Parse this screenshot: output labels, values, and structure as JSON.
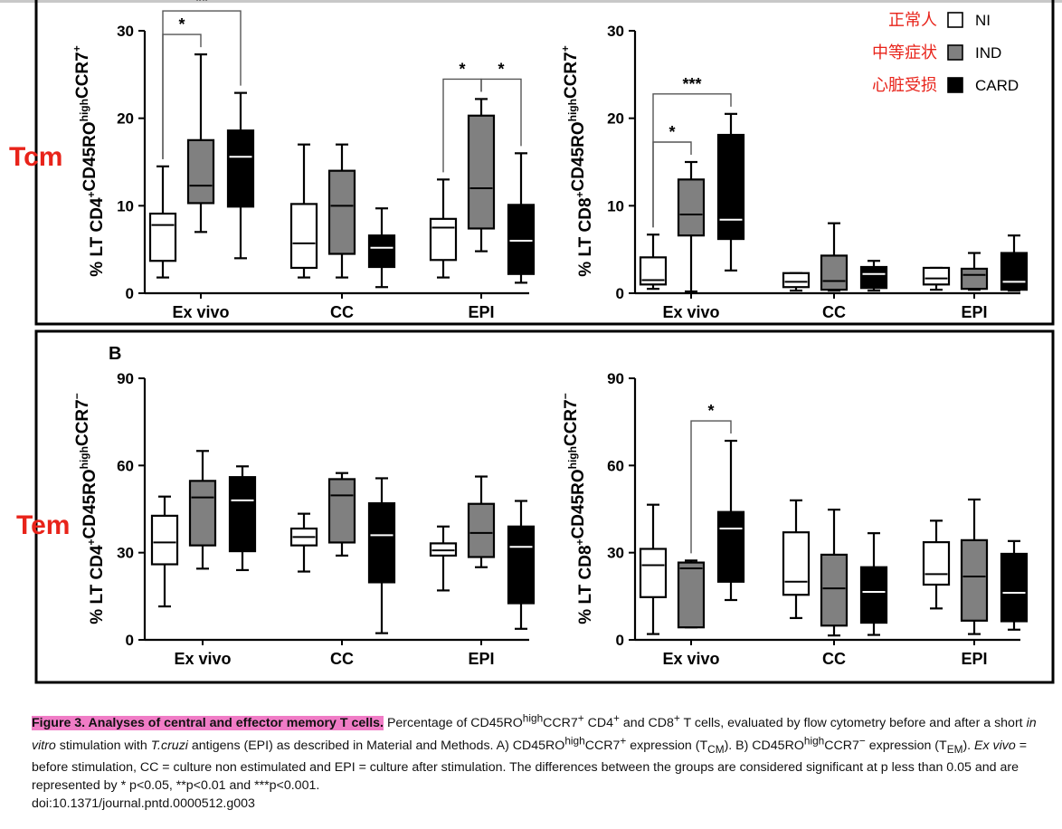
{
  "chart_data": [
    {
      "type": "box",
      "row": "Tcm",
      "side": "CD4",
      "ylabel": {
        "prefix": "% LT CD4",
        "sup1": "+",
        "mid": "CD45RO",
        "sup2": "high",
        "suffix": "CCR7",
        "sup3": "+"
      },
      "ylim": [
        0,
        30
      ],
      "yticks": [
        "0",
        "10",
        "20",
        "30"
      ],
      "categories": [
        "Ex vivo",
        "CC",
        "EPI"
      ],
      "groups": {
        "NI": [
          {
            "min": 1.8,
            "q1": 3.7,
            "median": 7.8,
            "q3": 9.1,
            "max": 14.5
          },
          {
            "min": 1.8,
            "q1": 2.9,
            "median": 5.7,
            "q3": 10.2,
            "max": 17.0
          },
          {
            "min": 1.8,
            "q1": 3.8,
            "median": 7.5,
            "q3": 8.5,
            "max": 13.0
          }
        ],
        "IND": [
          {
            "min": 7.0,
            "q1": 10.3,
            "median": 12.3,
            "q3": 17.5,
            "max": 27.3
          },
          {
            "min": 1.8,
            "q1": 4.5,
            "median": 10.0,
            "q3": 14.0,
            "max": 17.0
          },
          {
            "min": 4.8,
            "q1": 7.4,
            "median": 12.0,
            "q3": 20.3,
            "max": 22.2
          }
        ],
        "CARD": [
          {
            "min": 4.0,
            "q1": 9.9,
            "median": 15.6,
            "q3": 18.6,
            "max": 22.9
          },
          {
            "min": 0.7,
            "q1": 3.0,
            "median": 5.2,
            "q3": 6.6,
            "max": 9.7
          },
          {
            "min": 1.2,
            "q1": 2.2,
            "median": 6.0,
            "q3": 10.1,
            "max": 16.0
          }
        ]
      },
      "significance": [
        {
          "cat": 0,
          "from": "NI",
          "to": "IND",
          "label": "*"
        },
        {
          "cat": 0,
          "from": "NI",
          "to": "CARD",
          "label": "**"
        },
        {
          "cat": 2,
          "from": "NI",
          "to": "IND",
          "label": "*"
        },
        {
          "cat": 2,
          "from": "IND",
          "to": "CARD",
          "label": "*"
        }
      ]
    },
    {
      "type": "box",
      "row": "Tcm",
      "side": "CD8",
      "ylabel": {
        "prefix": "% LT CD8",
        "sup1": "+",
        "mid": "CD45RO",
        "sup2": "high",
        "suffix": "CCR7",
        "sup3": "+"
      },
      "ylim": [
        0,
        30
      ],
      "yticks": [
        "0",
        "10",
        "20",
        "30"
      ],
      "categories": [
        "Ex vivo",
        "CC",
        "EPI"
      ],
      "groups": {
        "NI": [
          {
            "min": 0.5,
            "q1": 1.0,
            "median": 1.5,
            "q3": 4.1,
            "max": 6.7
          },
          {
            "min": 0.3,
            "q1": 0.7,
            "median": 1.3,
            "q3": 2.3,
            "max": 2.3
          },
          {
            "min": 0.4,
            "q1": 1.0,
            "median": 1.7,
            "q3": 2.9,
            "max": 2.9
          }
        ],
        "IND": [
          {
            "min": 0.2,
            "q1": 6.6,
            "median": 9.0,
            "q3": 13.0,
            "max": 15.0
          },
          {
            "min": 0.3,
            "q1": 0.4,
            "median": 1.4,
            "q3": 4.3,
            "max": 8.0
          },
          {
            "min": 0.4,
            "q1": 0.5,
            "median": 2.1,
            "q3": 2.8,
            "max": 4.6
          }
        ],
        "CARD": [
          {
            "min": 2.6,
            "q1": 6.2,
            "median": 8.4,
            "q3": 18.1,
            "max": 20.5
          },
          {
            "min": 0.3,
            "q1": 0.6,
            "median": 2.2,
            "q3": 3.0,
            "max": 3.7
          },
          {
            "min": 0.3,
            "q1": 0.4,
            "median": 1.3,
            "q3": 4.6,
            "max": 6.6
          }
        ]
      },
      "significance": [
        {
          "cat": 0,
          "from": "NI",
          "to": "IND",
          "label": "*"
        },
        {
          "cat": 0,
          "from": "NI",
          "to": "CARD",
          "label": "***"
        }
      ]
    },
    {
      "type": "box",
      "row": "Tem",
      "side": "CD4",
      "ylabel": {
        "prefix": "% LT CD4",
        "sup1": "+",
        "mid": "CD45RO",
        "sup2": "high",
        "suffix": "CCR7",
        "sup3": "−"
      },
      "ylim": [
        0,
        90
      ],
      "yticks": [
        "0",
        "30",
        "60",
        "90"
      ],
      "categories": [
        "Ex vivo",
        "CC",
        "EPI"
      ],
      "groups": {
        "NI": [
          {
            "min": 11.5,
            "q1": 26.0,
            "median": 33.5,
            "q3": 42.7,
            "max": 49.3
          },
          {
            "min": 23.5,
            "q1": 32.5,
            "median": 35.4,
            "q3": 38.3,
            "max": 43.4
          },
          {
            "min": 17.0,
            "q1": 29.0,
            "median": 30.8,
            "q3": 33.2,
            "max": 39.0
          }
        ],
        "IND": [
          {
            "min": 24.5,
            "q1": 32.5,
            "median": 49.0,
            "q3": 54.7,
            "max": 65.0
          },
          {
            "min": 29.0,
            "q1": 33.5,
            "median": 49.7,
            "q3": 55.3,
            "max": 57.4
          },
          {
            "min": 25.0,
            "q1": 28.5,
            "median": 36.8,
            "q3": 46.8,
            "max": 56.2
          }
        ],
        "CARD": [
          {
            "min": 24.0,
            "q1": 30.5,
            "median": 48.0,
            "q3": 56.0,
            "max": 59.7
          },
          {
            "min": 2.3,
            "q1": 19.8,
            "median": 36.0,
            "q3": 47.0,
            "max": 55.6
          },
          {
            "min": 3.8,
            "q1": 12.6,
            "median": 32.0,
            "q3": 39.0,
            "max": 47.8
          }
        ]
      },
      "significance": []
    },
    {
      "type": "box",
      "row": "Tem",
      "side": "CD8",
      "ylabel": {
        "prefix": "% LT CD8",
        "sup1": "+",
        "mid": "CD45RO",
        "sup2": "high",
        "suffix": "CCR7",
        "sup3": "−"
      },
      "ylim": [
        0,
        90
      ],
      "yticks": [
        "0",
        "30",
        "60",
        "90"
      ],
      "categories": [
        "Ex vivo",
        "CC",
        "EPI"
      ],
      "groups": {
        "NI": [
          {
            "min": 2.0,
            "q1": 14.7,
            "median": 25.7,
            "q3": 31.3,
            "max": 46.5
          },
          {
            "min": 7.5,
            "q1": 15.5,
            "median": 20.0,
            "q3": 37.0,
            "max": 48.0
          },
          {
            "min": 10.8,
            "q1": 19.0,
            "median": 22.6,
            "q3": 33.6,
            "max": 41.0
          }
        ],
        "IND": [
          {
            "min": 4.3,
            "q1": 4.3,
            "median": 24.6,
            "q3": 26.6,
            "max": 27.3
          },
          {
            "min": 1.5,
            "q1": 4.9,
            "median": 17.7,
            "q3": 29.3,
            "max": 44.8
          },
          {
            "min": 2.0,
            "q1": 6.6,
            "median": 21.8,
            "q3": 34.3,
            "max": 48.3
          }
        ],
        "CARD": [
          {
            "min": 13.7,
            "q1": 20.0,
            "median": 38.3,
            "q3": 44.0,
            "max": 68.5
          },
          {
            "min": 1.7,
            "q1": 5.9,
            "median": 16.5,
            "q3": 25.0,
            "max": 36.7
          },
          {
            "min": 3.5,
            "q1": 6.4,
            "median": 16.2,
            "q3": 29.6,
            "max": 34.0
          }
        ]
      },
      "significance": [
        {
          "cat": 0,
          "from": "IND",
          "to": "CARD",
          "label": "*"
        }
      ]
    }
  ],
  "legend": [
    {
      "group": "NI",
      "label": "NI",
      "cn": "正常人",
      "fill": "#ffffff"
    },
    {
      "group": "IND",
      "label": "IND",
      "cn": "中等症状",
      "fill": "#808080"
    },
    {
      "group": "CARD",
      "label": "CARD",
      "cn": "心脏受损",
      "fill": "#000000"
    }
  ],
  "row_labels": {
    "tcm": "Tcm",
    "tem": "Tem"
  },
  "panel_b_letter": "B",
  "caption": {
    "title": "Figure 3. Analyses of central and effector memory T cells.",
    "body": "Percentage of CD45RO^high CCR7+ CD4+ and CD8+ T cells, evaluated by flow cytometry before and after a short in vitro stimulation with T.cruzi antigens (EPI) as described in Material and Methods. A) CD45RO^high CCR7+ expression (T_CM). B) CD45RO^high CCR7− expression (T_EM). Ex vivo = before stimulation, CC = culture non estimulated and EPI = culture after stimulation. The differences between the groups are considered significant at p less than 0.05 and are represented by * p<0.05, **p<0.01 and ***p<0.001.",
    "doi": "doi:10.1371/journal.pntd.0000512.g003"
  }
}
